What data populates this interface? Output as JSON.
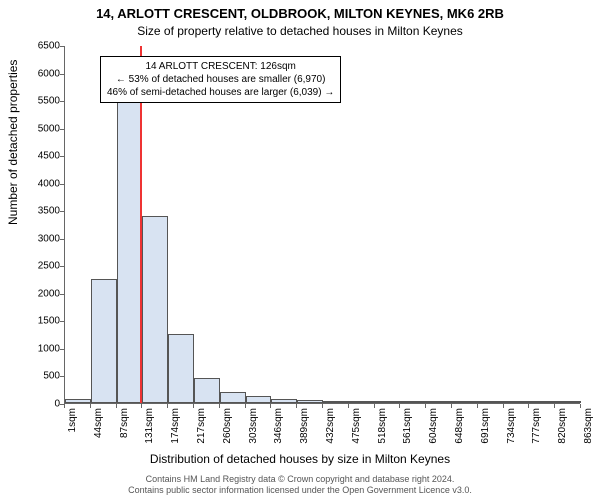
{
  "title_main": "14, ARLOTT CRESCENT, OLDBROOK, MILTON KEYNES, MK6 2RB",
  "title_sub": "Size of property relative to detached houses in Milton Keynes",
  "ylabel": "Number of detached properties",
  "xlabel": "Distribution of detached houses by size in Milton Keynes",
  "annotation": {
    "line1": "14 ARLOTT CRESCENT: 126sqm",
    "line2": "← 53% of detached houses are smaller (6,970)",
    "line3": "46% of semi-detached houses are larger (6,039) →"
  },
  "footer": {
    "line1": "Contains HM Land Registry data © Crown copyright and database right 2024.",
    "line2": "Contains public sector information licensed under the Open Government Licence v3.0."
  },
  "chart": {
    "type": "histogram",
    "ylim": [
      0,
      6500
    ],
    "yticks": [
      0,
      500,
      1000,
      1500,
      2000,
      2500,
      3000,
      3500,
      4000,
      4500,
      5000,
      5500,
      6000,
      6500
    ],
    "xtick_labels": [
      "1sqm",
      "44sqm",
      "87sqm",
      "131sqm",
      "174sqm",
      "217sqm",
      "260sqm",
      "303sqm",
      "346sqm",
      "389sqm",
      "432sqm",
      "475sqm",
      "518sqm",
      "561sqm",
      "604sqm",
      "648sqm",
      "691sqm",
      "734sqm",
      "777sqm",
      "820sqm",
      "863sqm"
    ],
    "bar_values": [
      80,
      2250,
      5600,
      3400,
      1250,
      450,
      200,
      130,
      80,
      60,
      40,
      30,
      20,
      15,
      10,
      8,
      5,
      4,
      3,
      2
    ],
    "bar_fill": "#d8e3f2",
    "bar_stroke": "#555555",
    "marker_position_sqm": 126,
    "marker_color": "#ee3333",
    "background": "#ffffff",
    "axis_color": "#666666",
    "tick_fontsize": 10,
    "label_fontsize": 12,
    "title_fontsize": 13,
    "annotation_fontsize": 10,
    "footer_fontsize": 9
  }
}
